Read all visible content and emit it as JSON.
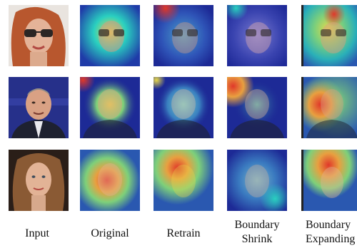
{
  "columns": [
    {
      "id": "input",
      "label_lines": [
        "Input"
      ]
    },
    {
      "id": "original",
      "label_lines": [
        "Original"
      ]
    },
    {
      "id": "retrain",
      "label_lines": [
        "Retrain"
      ]
    },
    {
      "id": "boundary-shrink",
      "label_lines": [
        "Boundary",
        "Shrink"
      ]
    },
    {
      "id": "boundary-expanding",
      "label_lines": [
        "Boundary",
        "Expanding"
      ]
    }
  ],
  "rows": [
    {
      "id": "face-1",
      "description_icon": "woman-sunglasses-photo"
    },
    {
      "id": "face-2",
      "description_icon": "man-suit-photo"
    },
    {
      "id": "face-3",
      "description_icon": "woman-long-hair-photo"
    }
  ],
  "colors": {
    "heat_low": "#1a2a9a",
    "heat_mid": "#2ad0c0",
    "heat_warm": "#e8d84a",
    "heat_high": "#e0382a",
    "skin": "#d9a184",
    "hair_red": "#b8572e",
    "hair_brown": "#8a5a34",
    "suit_dark": "#1e2130",
    "bg_blue": "#26308a"
  }
}
